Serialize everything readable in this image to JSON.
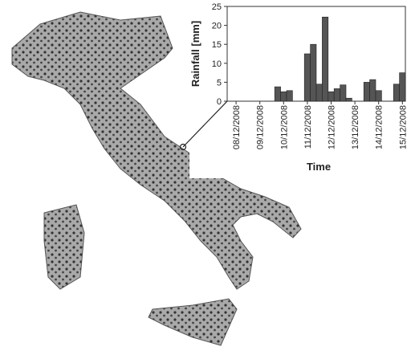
{
  "chart_data": {
    "type": "bar",
    "xlabel": "Time",
    "ylabel": "Rainfall [mm]",
    "categories": [
      null,
      "08/12/2008",
      null,
      null,
      null,
      "09/12/2008",
      null,
      null,
      null,
      "10/12/2008",
      null,
      null,
      null,
      "11/12/2008",
      null,
      null,
      null,
      "12/12/2008",
      null,
      null,
      null,
      "13/12/2008",
      null,
      null,
      null,
      "14/12/2008",
      null,
      null,
      null,
      "15/12/2008"
    ],
    "values": [
      0,
      0,
      0,
      0,
      0,
      0,
      0,
      0,
      3.8,
      2.5,
      2.8,
      0,
      0,
      12.5,
      15,
      4.5,
      22.2,
      2.5,
      3.3,
      4.3,
      0.8,
      0,
      0,
      5,
      5.7,
      2.8,
      0,
      0,
      4.5,
      7.5
    ],
    "color": "#555555",
    "ylim": [
      0,
      25
    ],
    "yticks": [
      0,
      5,
      10,
      15,
      20,
      25
    ]
  }
}
